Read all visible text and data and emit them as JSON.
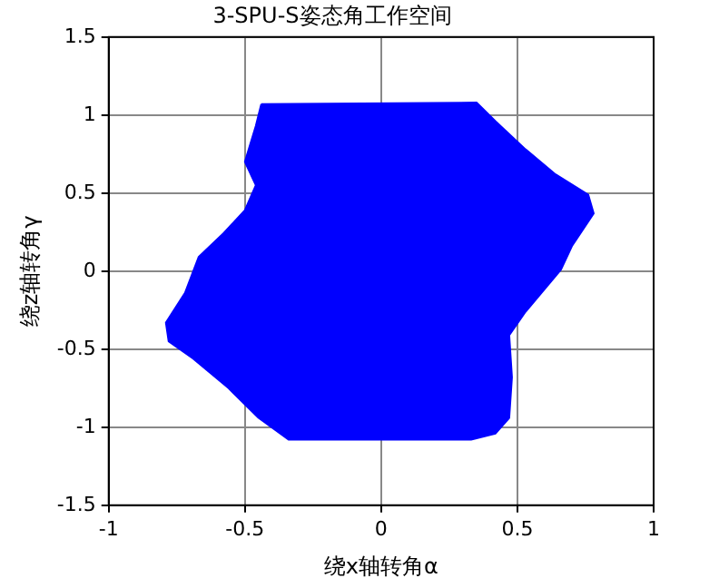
{
  "chart_data": {
    "type": "area",
    "title": "3-SPU-S姿态角工作空间",
    "xlabel": "绕x轴转角α",
    "ylabel": "绕z轴转角γ",
    "series": [
      {
        "color": "#0000ff",
        "x": [
          -0.44,
          0.35,
          0.42,
          0.53,
          0.64,
          0.76,
          0.78,
          0.7,
          0.66,
          0.53,
          0.47,
          0.48,
          0.47,
          0.42,
          0.33,
          -0.34,
          -0.45,
          -0.56,
          -0.69,
          -0.78,
          -0.79,
          -0.72,
          -0.67,
          -0.58,
          -0.5,
          -0.46,
          -0.5,
          -0.46,
          -0.44
        ],
        "values": [
          1.07,
          1.08,
          0.96,
          0.78,
          0.62,
          0.49,
          0.37,
          0.16,
          0.01,
          -0.26,
          -0.41,
          -0.68,
          -0.94,
          -1.04,
          -1.08,
          -1.08,
          -0.94,
          -0.75,
          -0.56,
          -0.45,
          -0.33,
          -0.14,
          0.09,
          0.24,
          0.39,
          0.55,
          0.7,
          0.93,
          1.07
        ]
      }
    ],
    "xlim": [
      -1,
      1
    ],
    "xticks": [
      -1,
      -0.5,
      0,
      0.5,
      1
    ],
    "ylim": [
      -1.5,
      1.5
    ],
    "yticks": [
      -1.5,
      -1,
      -0.5,
      0,
      0.5,
      1,
      1.5
    ],
    "grid": true,
    "marker": "none"
  }
}
